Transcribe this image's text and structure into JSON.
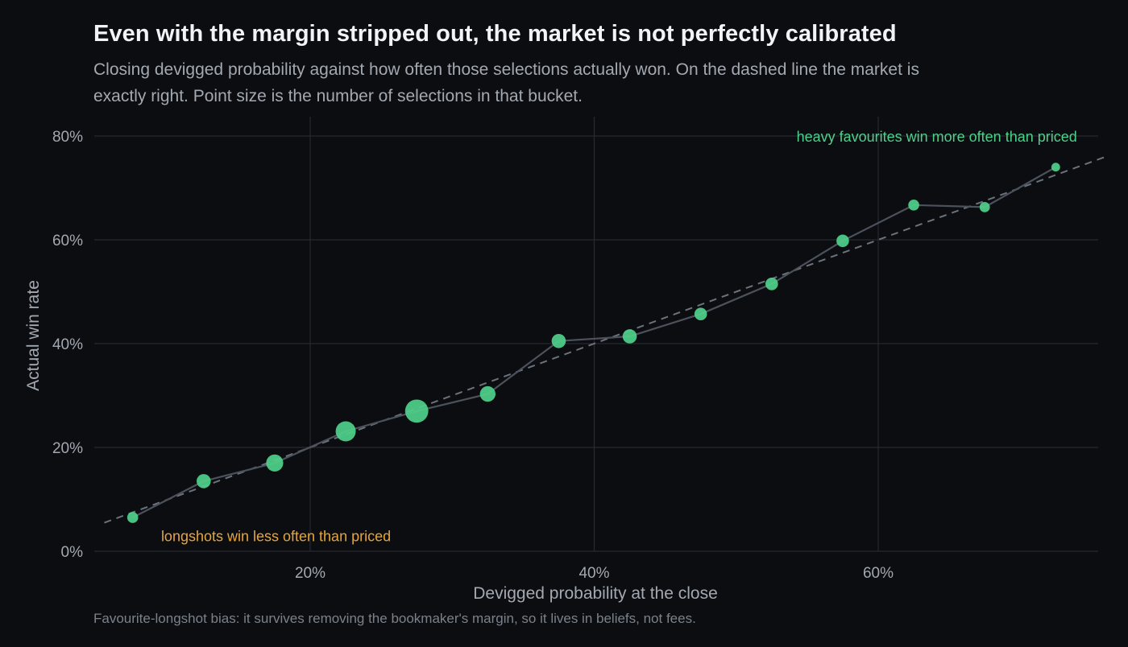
{
  "colors": {
    "background": "#0b0d11",
    "grid": "#262a31",
    "point": "#4fd08a",
    "line": "#4b525c",
    "reference": "#6b727c",
    "favourite_annotation": "#4fd08a",
    "longshot_annotation": "#e8a53a"
  },
  "chart_data": {
    "type": "scatter",
    "title": "Even with the margin stripped out, the market is not perfectly calibrated",
    "subtitle": "Closing devigged probability against how often those selections actually won. On the dashed line the market is exactly right. Point size is the number of selections in that bucket.",
    "caption": "Favourite-longshot bias: it survives removing the bookmaker's margin, so it lives in beliefs, not fees.",
    "xlabel": "Devigged probability at the close",
    "ylabel": "Actual win rate",
    "xlim": [
      0.05,
      0.76
    ],
    "ylim": [
      0,
      0.8
    ],
    "x_ticks": [
      {
        "value": 0.2,
        "label": "20%"
      },
      {
        "value": 0.4,
        "label": "40%"
      },
      {
        "value": 0.6,
        "label": "60%"
      }
    ],
    "y_ticks": [
      {
        "value": 0.0,
        "label": "0%"
      },
      {
        "value": 0.2,
        "label": "20%"
      },
      {
        "value": 0.4,
        "label": "40%"
      },
      {
        "value": 0.6,
        "label": "60%"
      },
      {
        "value": 0.8,
        "label": "80%"
      }
    ],
    "grid": true,
    "reference_line": {
      "style": "dashed",
      "meaning": "perfect calibration y = x"
    },
    "points": [
      {
        "x": 0.075,
        "y": 0.065,
        "size": 3
      },
      {
        "x": 0.125,
        "y": 0.135,
        "size": 5
      },
      {
        "x": 0.175,
        "y": 0.17,
        "size": 7
      },
      {
        "x": 0.225,
        "y": 0.231,
        "size": 9
      },
      {
        "x": 0.275,
        "y": 0.27,
        "size": 11
      },
      {
        "x": 0.325,
        "y": 0.303,
        "size": 6
      },
      {
        "x": 0.375,
        "y": 0.405,
        "size": 5
      },
      {
        "x": 0.425,
        "y": 0.414,
        "size": 5
      },
      {
        "x": 0.475,
        "y": 0.457,
        "size": 4
      },
      {
        "x": 0.525,
        "y": 0.515,
        "size": 4
      },
      {
        "x": 0.575,
        "y": 0.598,
        "size": 4
      },
      {
        "x": 0.625,
        "y": 0.667,
        "size": 3
      },
      {
        "x": 0.675,
        "y": 0.663,
        "size": 2.5
      },
      {
        "x": 0.725,
        "y": 0.74,
        "size": 1.5
      }
    ],
    "annotations": [
      {
        "text": "heavy favourites win more often than priced",
        "x": 0.74,
        "y": 0.8,
        "anchor": "end",
        "kind": "favourite"
      },
      {
        "text": "longshots win less often than priced",
        "x": 0.095,
        "y": 0.03,
        "anchor": "start",
        "kind": "longshot"
      }
    ]
  }
}
